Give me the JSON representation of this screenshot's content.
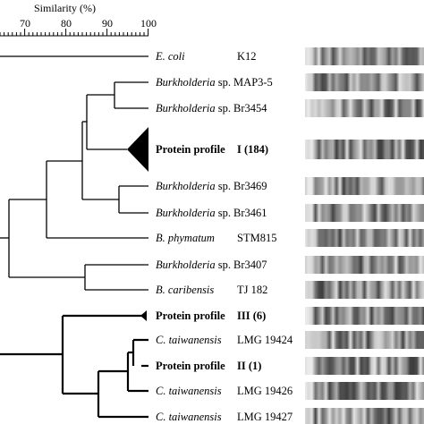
{
  "scale": {
    "title": "Similarity (%)",
    "ticks": [
      70,
      80,
      90,
      100
    ]
  },
  "leaves": [
    {
      "genus": "E. coli",
      "sp": "",
      "strain": "K12",
      "bold": false
    },
    {
      "genus": "Burkholderia",
      "sp": " sp.",
      "strain": "MAP3-5",
      "bold": false
    },
    {
      "genus": "Burkholderia",
      "sp": " sp.",
      "strain": "Br3454",
      "bold": false
    },
    {
      "genus": "Protein profile",
      "sp": "",
      "strain": "I (184)",
      "bold": true
    },
    {
      "genus": "Burkholderia",
      "sp": " sp.",
      "strain": "Br3469",
      "bold": false
    },
    {
      "genus": "Burkholderia",
      "sp": " sp.",
      "strain": "Br3461",
      "bold": false
    },
    {
      "genus": "B. phymatum",
      "sp": "",
      "strain": "STM815",
      "bold": false
    },
    {
      "genus": "Burkholderia",
      "sp": " sp.",
      "strain": "Br3407",
      "bold": false
    },
    {
      "genus": "B. caribensis",
      "sp": "",
      "strain": "TJ 182",
      "bold": false
    },
    {
      "genus": "Protein profile",
      "sp": "",
      "strain": "III (6)",
      "bold": true
    },
    {
      "genus": "C. taiwanensis",
      "sp": "",
      "strain": "LMG 19424",
      "bold": false
    },
    {
      "genus": "Protein profile",
      "sp": "",
      "strain": "II (1)",
      "bold": true
    },
    {
      "genus": "C. taiwanensis",
      "sp": "",
      "strain": "LMG 19426",
      "bold": false
    },
    {
      "genus": "C. taiwanensis",
      "sp": "",
      "strain": "LMG 19427",
      "bold": false
    }
  ]
}
